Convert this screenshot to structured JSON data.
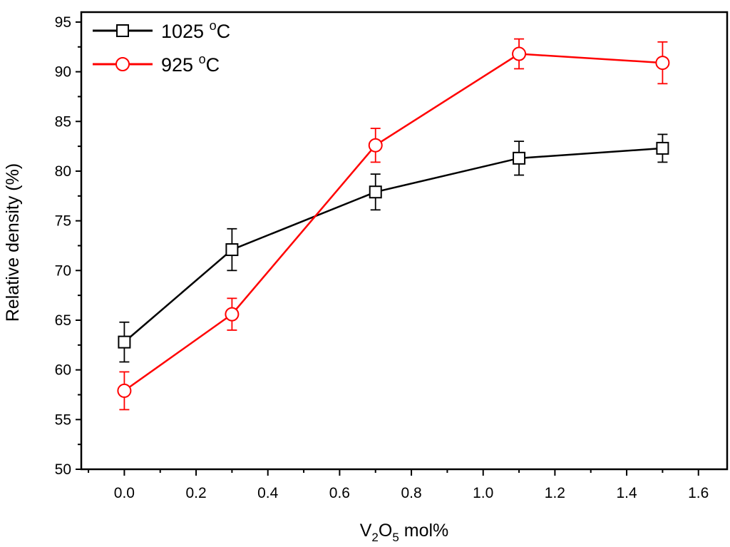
{
  "chart_data": {
    "type": "line",
    "title": "",
    "xlabel": {
      "base": "V",
      "sub1": "2",
      "mid": "O",
      "sub2": "5",
      "tail": " mol%"
    },
    "ylabel": "Relative density (%)",
    "xlim": [
      -0.12,
      1.68
    ],
    "ylim": [
      50,
      96
    ],
    "x_ticks": [
      0.0,
      0.2,
      0.4,
      0.6,
      0.8,
      1.0,
      1.2,
      1.4,
      1.6
    ],
    "x_tick_labels": [
      "0.0",
      "0.2",
      "0.4",
      "0.6",
      "0.8",
      "1.0",
      "1.2",
      "1.4",
      "1.6"
    ],
    "y_ticks": [
      50,
      55,
      60,
      65,
      70,
      75,
      80,
      85,
      90,
      95
    ],
    "y_tick_labels": [
      "50",
      "55",
      "60",
      "65",
      "70",
      "75",
      "80",
      "85",
      "90",
      "95"
    ],
    "x": [
      0.0,
      0.3,
      0.7,
      1.1,
      1.5
    ],
    "series": [
      {
        "name": "1025 °C",
        "legend_main": "1025 ",
        "legend_sup": "o",
        "legend_unit": "C",
        "color": "#000000",
        "marker": "square",
        "values": [
          62.8,
          72.1,
          77.9,
          81.3,
          82.3
        ],
        "error": [
          2.0,
          2.1,
          1.8,
          1.7,
          1.4
        ]
      },
      {
        "name": "925 °C",
        "legend_main": "925 ",
        "legend_sup": "o",
        "legend_unit": "C",
        "color": "#ff0000",
        "marker": "circle",
        "values": [
          57.9,
          65.6,
          82.6,
          91.8,
          90.9
        ],
        "error": [
          1.9,
          1.6,
          1.7,
          1.5,
          2.1
        ]
      }
    ],
    "legend_position": "top-left",
    "grid": false
  }
}
